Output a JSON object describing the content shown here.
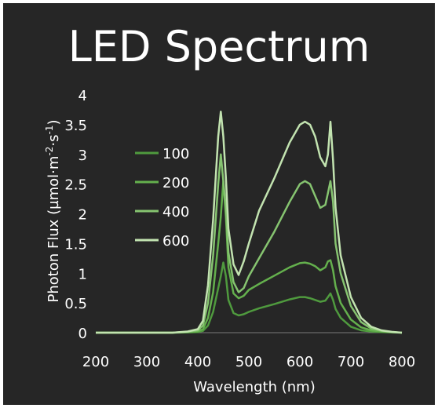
{
  "chart_data": {
    "type": "line",
    "title": "LED Spectrum",
    "xlabel": "Wavelength (nm)",
    "ylabel": {
      "base": "Photon Flux (µmol·m",
      "exp1": "-2",
      "mid": "·s",
      "exp2": "-1",
      "end": ")"
    },
    "xlim": [
      200,
      800
    ],
    "ylim": [
      0,
      4
    ],
    "xticks": [
      "200",
      "300",
      "400",
      "500",
      "600",
      "700",
      "800"
    ],
    "yticks": [
      "0",
      "0.5",
      "1",
      "1.5",
      "2",
      "2.5",
      "3",
      "3.5",
      "4"
    ],
    "grid": false,
    "legend_position": "upper-left",
    "x": [
      200,
      300,
      350,
      380,
      400,
      410,
      420,
      430,
      440,
      445,
      450,
      455,
      460,
      470,
      480,
      490,
      500,
      520,
      550,
      580,
      600,
      610,
      620,
      630,
      640,
      650,
      655,
      660,
      665,
      670,
      680,
      700,
      720,
      740,
      760,
      780,
      800
    ],
    "series": [
      {
        "name": "100",
        "color": "#4f9a3e",
        "values": [
          0,
          0,
          0,
          0.005,
          0.01,
          0.03,
          0.12,
          0.35,
          0.75,
          0.95,
          1.18,
          0.95,
          0.55,
          0.33,
          0.29,
          0.31,
          0.35,
          0.41,
          0.48,
          0.56,
          0.6,
          0.6,
          0.58,
          0.55,
          0.52,
          0.54,
          0.6,
          0.66,
          0.55,
          0.4,
          0.25,
          0.1,
          0.04,
          0.02,
          0.01,
          0.005,
          0
        ]
      },
      {
        "name": "200",
        "color": "#64b04d",
        "values": [
          0,
          0,
          0,
          0.01,
          0.02,
          0.06,
          0.25,
          0.68,
          1.5,
          1.95,
          2.55,
          1.95,
          1.1,
          0.66,
          0.58,
          0.62,
          0.72,
          0.82,
          0.96,
          1.1,
          1.17,
          1.18,
          1.16,
          1.12,
          1.05,
          1.1,
          1.2,
          1.22,
          1.05,
          0.78,
          0.5,
          0.22,
          0.09,
          0.04,
          0.02,
          0.01,
          0
        ]
      },
      {
        "name": "400",
        "color": "#86c470",
        "values": [
          0,
          0,
          0,
          0.015,
          0.04,
          0.12,
          0.5,
          1.3,
          2.5,
          3.0,
          2.55,
          2.1,
          1.35,
          0.85,
          0.68,
          0.75,
          0.95,
          1.25,
          1.7,
          2.2,
          2.5,
          2.55,
          2.5,
          2.3,
          2.1,
          2.15,
          2.35,
          2.55,
          2.2,
          1.5,
          1.0,
          0.45,
          0.18,
          0.07,
          0.03,
          0.01,
          0
        ]
      },
      {
        "name": "600",
        "color": "#c2e3b0",
        "values": [
          0,
          0,
          0,
          0.02,
          0.06,
          0.2,
          0.8,
          1.9,
          3.3,
          3.72,
          3.3,
          2.6,
          1.75,
          1.15,
          0.97,
          1.2,
          1.5,
          2.05,
          2.6,
          3.2,
          3.5,
          3.55,
          3.5,
          3.3,
          2.95,
          2.8,
          3.0,
          3.55,
          2.9,
          2.1,
          1.3,
          0.6,
          0.25,
          0.1,
          0.04,
          0.015,
          0
        ]
      }
    ]
  }
}
